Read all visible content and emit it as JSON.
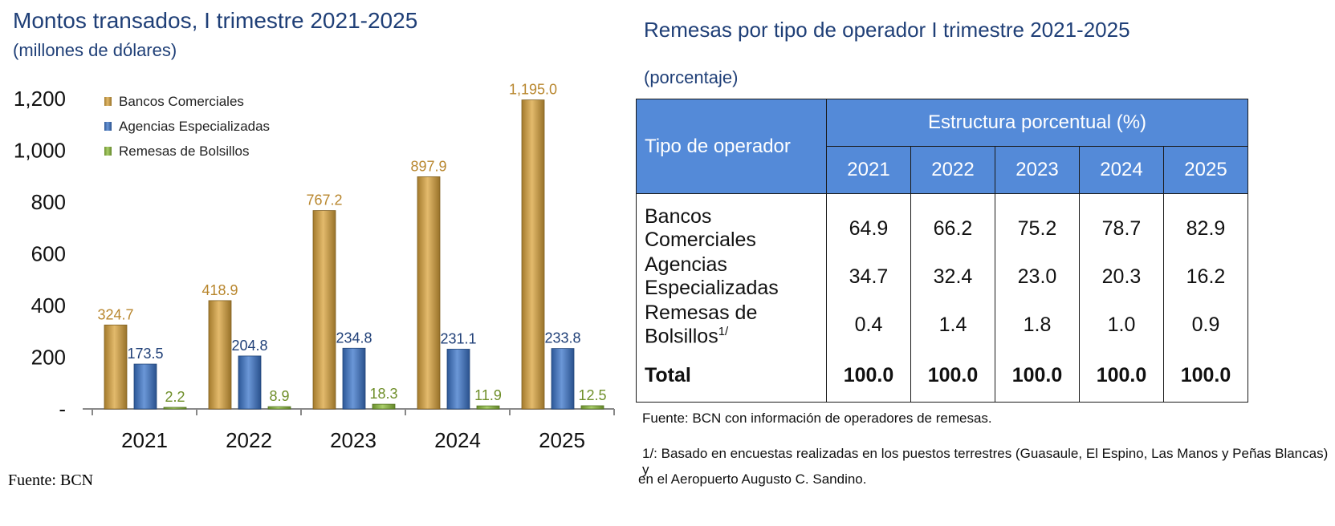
{
  "left": {
    "title": "Montos transados, I trimestre 2021-2025",
    "subtitle": "(millones de dólares)",
    "source": "Fuente: BCN"
  },
  "chart_data": {
    "type": "bar",
    "categories": [
      "2021",
      "2022",
      "2023",
      "2024",
      "2025"
    ],
    "series": [
      {
        "name": "Bancos Comerciales",
        "values": [
          324.7,
          418.9,
          767.2,
          897.9,
          1195.0
        ],
        "labels": [
          "324.7",
          "418.9",
          "767.2",
          "897.9",
          "1,195.0"
        ],
        "color": "#d9a33b",
        "label_color": "#b8862d"
      },
      {
        "name": "Agencias Especializadas",
        "values": [
          173.5,
          204.8,
          234.8,
          231.1,
          233.8
        ],
        "labels": [
          "173.5",
          "204.8",
          "234.8",
          "231.1",
          "233.8"
        ],
        "color": "#3a74c9",
        "label_color": "#1f3f77"
      },
      {
        "name": "Remesas de Bolsillos",
        "values": [
          2.2,
          8.9,
          18.3,
          11.9,
          12.5
        ],
        "labels": [
          "2.2",
          "8.9",
          "18.3",
          "11.9",
          "12.5"
        ],
        "color": "#8dbf3a",
        "label_color": "#6f8f2a"
      }
    ],
    "yticks": [
      "-",
      "200",
      "400",
      "600",
      "800",
      "1,000",
      "1,200"
    ],
    "ylim": [
      0,
      1200
    ],
    "legend": "top-left",
    "grid": false
  },
  "right": {
    "title": "Remesas por tipo de operador I trimestre 2021-2025",
    "subtitle": "(porcentaje)",
    "table": {
      "header_left": "Tipo de operador",
      "header_group": "Estructura porcentual (%)",
      "years": [
        "2021",
        "2022",
        "2023",
        "2024",
        "2025"
      ],
      "rows": [
        {
          "label": "Bancos Comerciales",
          "sup": "",
          "values": [
            "64.9",
            "66.2",
            "75.2",
            "78.7",
            "82.9"
          ]
        },
        {
          "label": "Agencias Especializadas",
          "sup": "",
          "values": [
            "34.7",
            "32.4",
            "23.0",
            "20.3",
            "16.2"
          ]
        },
        {
          "label": "Remesas de Bolsillos",
          "sup": "1/",
          "values": [
            "0.4",
            "1.4",
            "1.8",
            "1.0",
            "0.9"
          ]
        }
      ],
      "total": {
        "label": "Total",
        "values": [
          "100.0",
          "100.0",
          "100.0",
          "100.0",
          "100.0"
        ]
      }
    },
    "source": "Fuente: BCN con información de operadores de remesas.",
    "footnote_line1": "1/: Basado en encuestas realizadas en los puestos terrestres (Guasaule, El Espino, Las Manos y Peñas Blancas) y",
    "footnote_line2": "en el Aeropuerto Augusto C. Sandino."
  }
}
